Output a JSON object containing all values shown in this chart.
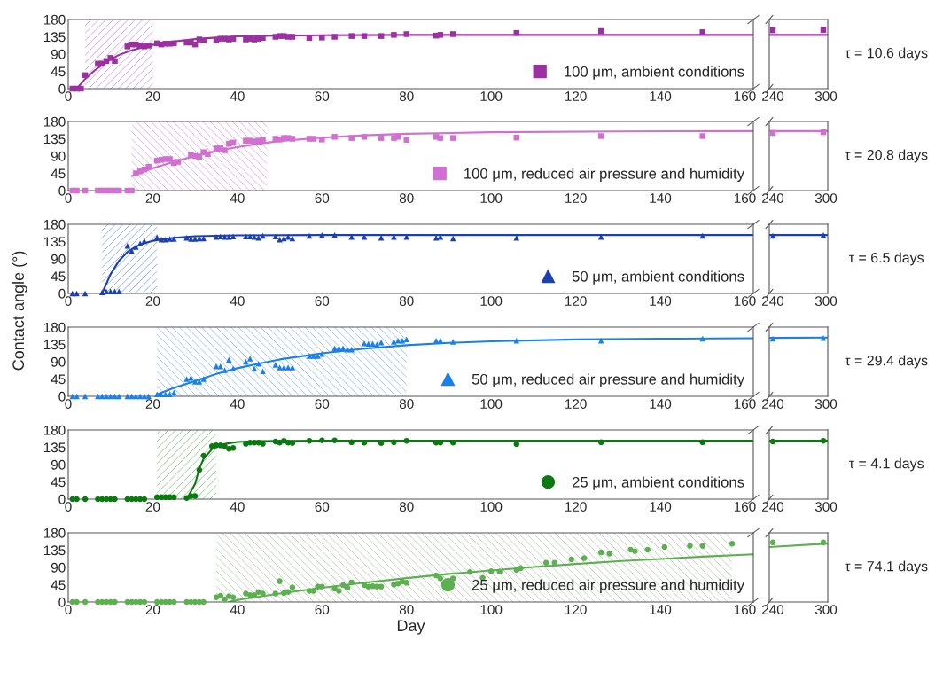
{
  "chart_data": [
    {
      "type": "scatter",
      "legend": "bottom right",
      "xlim": [
        0,
        162
      ],
      "xticks": [
        0,
        20,
        40,
        60,
        80,
        100,
        120,
        140,
        160
      ],
      "ylim": [
        0,
        180
      ],
      "yticks": [
        0,
        45,
        90,
        135,
        180
      ],
      "annotations": [
        "τ = 10.6 days"
      ],
      "bands": [
        {
          "axis": "x",
          "from": 4,
          "to": 20,
          "color": "#c890d8"
        }
      ],
      "series": [
        {
          "name": "100 μm, ambient conditions",
          "marker": "square",
          "color": "#9b30a0",
          "x": [
            1,
            2,
            3,
            4,
            7,
            8,
            9,
            10,
            11,
            14,
            15,
            16,
            17,
            18,
            19,
            21,
            22,
            23,
            24,
            25,
            28,
            29,
            30,
            31,
            32,
            35,
            36,
            37,
            38,
            39,
            42,
            43,
            44,
            45,
            46,
            49,
            50,
            51,
            52,
            53,
            57,
            60,
            63,
            67,
            70,
            74,
            77,
            80,
            87,
            88,
            91,
            106,
            126,
            150
          ],
          "values": [
            0,
            0,
            0,
            35,
            65,
            65,
            72,
            80,
            72,
            110,
            115,
            115,
            112,
            110,
            112,
            118,
            115,
            117,
            117,
            118,
            120,
            120,
            115,
            128,
            125,
            125,
            130,
            130,
            128,
            130,
            128,
            130,
            128,
            130,
            132,
            135,
            137,
            137,
            135,
            135,
            132,
            133,
            135,
            137,
            137,
            137,
            140,
            142,
            138,
            140,
            142,
            145,
            150,
            147
          ]
        },
        {
          "type": "line",
          "marker": "none",
          "color": "#9b30a0",
          "x": [
            2,
            4,
            6,
            8,
            10,
            12,
            15,
            20,
            25,
            30,
            35,
            40,
            50,
            60,
            80,
            162
          ],
          "values": [
            0,
            25,
            45,
            62,
            76,
            88,
            100,
            114,
            123,
            129,
            133,
            136,
            138,
            139,
            140,
            140
          ]
        }
      ]
    },
    {
      "type": "scatter",
      "tick_labels": "x",
      "xlim": [
        236,
        302
      ],
      "xticks": [
        240,
        300
      ],
      "ylim": [
        0,
        180
      ],
      "series": [
        {
          "marker": "square",
          "color": "#9b30a0",
          "x": [
            240,
            297
          ],
          "values": [
            152,
            153
          ]
        },
        {
          "type": "line",
          "marker": "none",
          "color": "#9b30a0",
          "x": [
            236,
            302
          ],
          "values": [
            140,
            140
          ]
        }
      ]
    },
    {
      "type": "scatter",
      "legend": "bottom right",
      "xlim": [
        0,
        162
      ],
      "xticks": [
        0,
        20,
        40,
        60,
        80,
        100,
        120,
        140,
        160
      ],
      "ylim": [
        0,
        180
      ],
      "yticks": [
        0,
        45,
        90,
        135,
        180
      ],
      "annotations": [
        "τ = 20.8 days"
      ],
      "bands": [
        {
          "axis": "x",
          "from": 15,
          "to": 47,
          "color": "#e0a0e0"
        }
      ],
      "series": [
        {
          "name": "100 μm, reduced air pressure and humidity",
          "marker": "square",
          "color": "#d070d0",
          "x": [
            1,
            2,
            4,
            7,
            8,
            9,
            10,
            11,
            12,
            14,
            15,
            16,
            17,
            18,
            19,
            21,
            22,
            23,
            24,
            25,
            26,
            29,
            30,
            31,
            32,
            33,
            35,
            36,
            37,
            38,
            39,
            42,
            43,
            44,
            45,
            46,
            49,
            50,
            51,
            52,
            53,
            57,
            58,
            60,
            63,
            67,
            70,
            74,
            77,
            78,
            80,
            87,
            88,
            91,
            106,
            126,
            150
          ],
          "values": [
            0,
            0,
            0,
            0,
            0,
            0,
            0,
            0,
            0,
            0,
            0,
            45,
            50,
            55,
            62,
            78,
            80,
            82,
            82,
            72,
            75,
            92,
            90,
            88,
            100,
            95,
            110,
            110,
            105,
            122,
            125,
            130,
            130,
            128,
            130,
            132,
            135,
            133,
            137,
            137,
            135,
            135,
            135,
            133,
            140,
            137,
            140,
            137,
            137,
            140,
            132,
            140,
            137,
            137,
            138,
            142,
            142
          ]
        },
        {
          "type": "line",
          "marker": "none",
          "color": "#d070d0",
          "x": [
            15,
            20,
            25,
            30,
            35,
            40,
            45,
            50,
            60,
            70,
            80,
            100,
            130,
            162
          ],
          "values": [
            38,
            58,
            75,
            90,
            103,
            113,
            122,
            129,
            138,
            144,
            148,
            152,
            154,
            155
          ]
        }
      ]
    },
    {
      "type": "scatter",
      "tick_labels": "x",
      "xlim": [
        236,
        302
      ],
      "xticks": [
        240,
        300
      ],
      "ylim": [
        0,
        180
      ],
      "series": [
        {
          "marker": "square",
          "color": "#d070d0",
          "x": [
            240,
            297
          ],
          "values": [
            150,
            152
          ]
        },
        {
          "type": "line",
          "marker": "none",
          "color": "#d070d0",
          "x": [
            236,
            302
          ],
          "values": [
            155,
            155
          ]
        }
      ]
    },
    {
      "type": "scatter",
      "legend": "bottom right",
      "xlim": [
        0,
        162
      ],
      "xticks": [
        0,
        20,
        40,
        60,
        80,
        100,
        120,
        140,
        160
      ],
      "ylim": [
        0,
        180
      ],
      "yticks": [
        0,
        45,
        90,
        135,
        180
      ],
      "annotations": [
        "τ = 6.5 days"
      ],
      "ylabel": "Contact angle (°)",
      "bands": [
        {
          "axis": "x",
          "from": 8,
          "to": 21,
          "color": "#7aa0e0"
        }
      ],
      "series": [
        {
          "name": "50 μm, ambient conditions",
          "marker": "triangle",
          "color": "#1a3fb0",
          "x": [
            1,
            2,
            4,
            8,
            9,
            10,
            11,
            12,
            14,
            15,
            16,
            17,
            18,
            21,
            22,
            23,
            24,
            25,
            28,
            29,
            30,
            31,
            32,
            35,
            36,
            37,
            38,
            39,
            42,
            43,
            44,
            45,
            46,
            49,
            50,
            51,
            52,
            53,
            57,
            60,
            63,
            67,
            70,
            74,
            77,
            80,
            87,
            88,
            91,
            106,
            126,
            150
          ],
          "values": [
            0,
            0,
            0,
            3,
            5,
            5,
            5,
            5,
            124,
            110,
            121,
            130,
            136,
            146,
            140,
            140,
            142,
            142,
            145,
            142,
            142,
            143,
            143,
            147,
            148,
            147,
            147,
            148,
            148,
            148,
            147,
            145,
            150,
            148,
            140,
            143,
            147,
            143,
            150,
            152,
            152,
            147,
            147,
            145,
            147,
            147,
            145,
            147,
            143,
            145,
            147,
            150
          ]
        },
        {
          "type": "line",
          "marker": "none",
          "color": "#1a3fb0",
          "x": [
            8,
            10,
            12,
            14,
            16,
            18,
            20,
            25,
            30,
            40,
            60,
            162
          ],
          "values": [
            0,
            50,
            85,
            108,
            122,
            131,
            137,
            145,
            149,
            151,
            152,
            152
          ]
        }
      ]
    },
    {
      "type": "scatter",
      "tick_labels": "x",
      "xlim": [
        236,
        302
      ],
      "xticks": [
        240,
        300
      ],
      "ylim": [
        0,
        180
      ],
      "series": [
        {
          "marker": "triangle",
          "color": "#1a3fb0",
          "x": [
            240,
            297
          ],
          "values": [
            150,
            152
          ]
        },
        {
          "type": "line",
          "marker": "none",
          "color": "#1a3fb0",
          "x": [
            236,
            302
          ],
          "values": [
            152,
            152
          ]
        }
      ]
    },
    {
      "type": "scatter",
      "legend": "bottom right",
      "xlim": [
        0,
        162
      ],
      "xticks": [
        0,
        20,
        40,
        60,
        80,
        100,
        120,
        140,
        160
      ],
      "ylim": [
        0,
        180
      ],
      "yticks": [
        0,
        45,
        90,
        135,
        180
      ],
      "annotations": [
        "τ = 29.4 days"
      ],
      "bands": [
        {
          "axis": "x",
          "from": 21,
          "to": 80,
          "color": "#88bbee"
        }
      ],
      "series": [
        {
          "name": "50 μm, reduced air pressure and humidity",
          "marker": "triangle",
          "color": "#1a80e8",
          "x": [
            1,
            2,
            4,
            7,
            8,
            9,
            10,
            11,
            12,
            14,
            15,
            16,
            17,
            18,
            19,
            21,
            22,
            23,
            24,
            25,
            28,
            29,
            30,
            31,
            32,
            35,
            36,
            37,
            38,
            39,
            42,
            43,
            44,
            45,
            46,
            49,
            50,
            51,
            52,
            53,
            57,
            58,
            59,
            60,
            63,
            64,
            65,
            66,
            67,
            70,
            71,
            72,
            73,
            74,
            77,
            78,
            79,
            80,
            87,
            88,
            91,
            106,
            126,
            150
          ],
          "values": [
            0,
            0,
            0,
            0,
            0,
            0,
            0,
            0,
            0,
            0,
            0,
            0,
            0,
            0,
            0,
            5,
            5,
            5,
            5,
            10,
            45,
            48,
            38,
            38,
            45,
            78,
            78,
            68,
            95,
            72,
            90,
            98,
            72,
            85,
            65,
            82,
            75,
            75,
            75,
            75,
            105,
            105,
            105,
            110,
            125,
            125,
            125,
            122,
            122,
            138,
            137,
            137,
            135,
            140,
            142,
            145,
            145,
            148,
            145,
            145,
            142,
            145,
            145,
            150
          ]
        },
        {
          "type": "line",
          "marker": "none",
          "color": "#1a80e8",
          "x": [
            21,
            25,
            30,
            35,
            40,
            45,
            50,
            60,
            70,
            80,
            90,
            100,
            120,
            140,
            162
          ],
          "values": [
            5,
            22,
            40,
            58,
            73,
            85,
            96,
            112,
            124,
            133,
            139,
            143,
            148,
            150,
            151
          ]
        }
      ]
    },
    {
      "type": "scatter",
      "tick_labels": "x",
      "xlim": [
        236,
        302
      ],
      "xticks": [
        240,
        300
      ],
      "ylim": [
        0,
        180
      ],
      "series": [
        {
          "marker": "triangle",
          "color": "#1a80e8",
          "x": [
            240,
            297
          ],
          "values": [
            150,
            152
          ]
        },
        {
          "type": "line",
          "marker": "none",
          "color": "#1a80e8",
          "x": [
            236,
            302
          ],
          "values": [
            152,
            153
          ]
        }
      ]
    },
    {
      "type": "scatter",
      "legend": "bottom right",
      "xlim": [
        0,
        162
      ],
      "xticks": [
        0,
        20,
        40,
        60,
        80,
        100,
        120,
        140,
        160
      ],
      "ylim": [
        0,
        180
      ],
      "yticks": [
        0,
        45,
        90,
        135,
        180
      ],
      "annotations": [
        "τ = 4.1 days"
      ],
      "bands": [
        {
          "axis": "x",
          "from": 21,
          "to": 35,
          "color": "#80c080"
        }
      ],
      "series": [
        {
          "name": "25 μm, ambient conditions",
          "marker": "circle",
          "color": "#0a7a10",
          "x": [
            1,
            2,
            4,
            7,
            8,
            9,
            10,
            11,
            14,
            15,
            16,
            17,
            18,
            21,
            22,
            23,
            24,
            25,
            28,
            29,
            30,
            31,
            32,
            34,
            35,
            36,
            37,
            38,
            39,
            42,
            43,
            44,
            45,
            46,
            49,
            50,
            51,
            52,
            53,
            57,
            60,
            63,
            67,
            70,
            74,
            77,
            80,
            87,
            88,
            91,
            106,
            126,
            150
          ],
          "values": [
            0,
            0,
            0,
            0,
            0,
            0,
            0,
            0,
            0,
            0,
            0,
            0,
            0,
            5,
            5,
            5,
            5,
            5,
            3,
            8,
            8,
            76,
            113,
            138,
            140,
            140,
            138,
            131,
            133,
            144,
            147,
            147,
            147,
            144,
            150,
            147,
            152,
            147,
            146,
            152,
            153,
            153,
            148,
            147,
            146,
            148,
            152,
            147,
            147,
            147,
            143,
            148,
            148
          ]
        },
        {
          "type": "line",
          "marker": "none",
          "color": "#0a7a10",
          "x": [
            28,
            30,
            31,
            32,
            34,
            36,
            40,
            45,
            60,
            162
          ],
          "values": [
            0,
            40,
            80,
            105,
            130,
            142,
            149,
            151,
            152,
            152
          ]
        }
      ]
    },
    {
      "type": "scatter",
      "tick_labels": "x",
      "xlim": [
        236,
        302
      ],
      "xticks": [
        240,
        300
      ],
      "ylim": [
        0,
        180
      ],
      "series": [
        {
          "marker": "circle",
          "color": "#0a7a10",
          "x": [
            240,
            297
          ],
          "values": [
            150,
            152
          ]
        },
        {
          "type": "line",
          "marker": "none",
          "color": "#0a7a10",
          "x": [
            236,
            302
          ],
          "values": [
            152,
            152
          ]
        }
      ]
    },
    {
      "type": "scatter",
      "legend": "bottom right",
      "xlim": [
        0,
        162
      ],
      "xticks": [
        0,
        20,
        40,
        60,
        80,
        100,
        120,
        140,
        160
      ],
      "ylim": [
        0,
        180
      ],
      "yticks": [
        0,
        45,
        90,
        135,
        180
      ],
      "annotations": [
        "τ = 74.1 days"
      ],
      "xlabel": "Day",
      "bands": [
        {
          "axis": "x",
          "from": 35,
          "to": 157,
          "color": "#b8c8b0"
        }
      ],
      "series": [
        {
          "name": "25 μm, reduced air pressure and humidity",
          "marker": "circle",
          "color": "#5cb050",
          "x": [
            1,
            2,
            4,
            7,
            8,
            9,
            10,
            11,
            14,
            15,
            16,
            17,
            18,
            21,
            22,
            23,
            24,
            25,
            28,
            29,
            30,
            31,
            32,
            35,
            36,
            37,
            38,
            39,
            42,
            43,
            44,
            45,
            46,
            49,
            50,
            51,
            52,
            53,
            57,
            58,
            59,
            60,
            63,
            64,
            65,
            66,
            67,
            70,
            71,
            72,
            73,
            74,
            77,
            78,
            79,
            80,
            87,
            88,
            91,
            95,
            98,
            100,
            102,
            106,
            107,
            113,
            115,
            119,
            122,
            126,
            128,
            133,
            134,
            137,
            141,
            147,
            150,
            157
          ],
          "values": [
            0,
            0,
            0,
            0,
            0,
            0,
            0,
            0,
            0,
            0,
            0,
            0,
            0,
            0,
            0,
            0,
            0,
            0,
            0,
            0,
            0,
            0,
            0,
            12,
            16,
            7,
            15,
            12,
            22,
            18,
            18,
            26,
            22,
            22,
            54,
            23,
            26,
            38,
            29,
            29,
            40,
            40,
            35,
            29,
            44,
            37,
            51,
            44,
            40,
            41,
            40,
            40,
            45,
            48,
            53,
            50,
            69,
            61,
            61,
            78,
            63,
            80,
            79,
            83,
            88,
            102,
            102,
            111,
            114,
            129,
            126,
            136,
            132,
            136,
            143,
            146,
            146,
            152
          ]
        },
        {
          "type": "line",
          "marker": "none",
          "color": "#5cb050",
          "x": [
            38,
            40,
            50,
            60,
            70,
            80,
            90,
            100,
            110,
            120,
            130,
            140,
            150,
            162
          ],
          "values": [
            0,
            5,
            22,
            37,
            50,
            62,
            73,
            82,
            91,
            99,
            106,
            112,
            118,
            124
          ]
        }
      ]
    },
    {
      "type": "scatter",
      "tick_labels": "x",
      "xlim": [
        236,
        302
      ],
      "xticks": [
        240,
        300
      ],
      "ylim": [
        0,
        180
      ],
      "series": [
        {
          "marker": "circle",
          "color": "#5cb050",
          "x": [
            240,
            297
          ],
          "values": [
            155,
            155
          ]
        },
        {
          "type": "line",
          "marker": "none",
          "color": "#5cb050",
          "x": [
            236,
            302
          ],
          "values": [
            143,
            152
          ]
        }
      ]
    }
  ]
}
